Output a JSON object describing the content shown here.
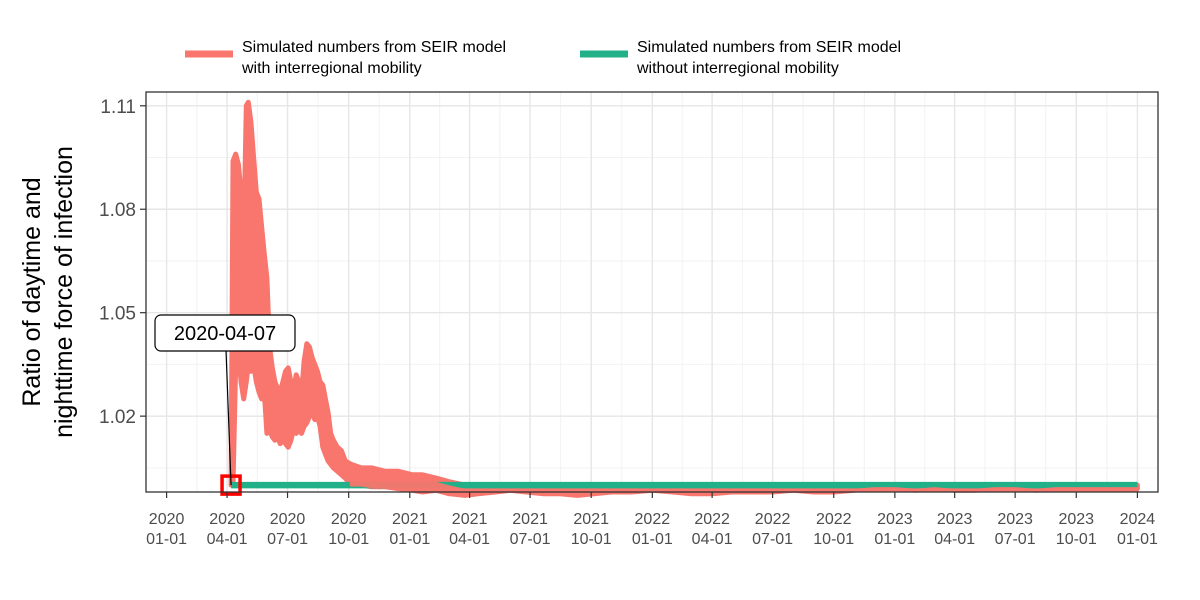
{
  "chart_data": {
    "type": "line",
    "xlabel": "",
    "ylabel": [
      "Ratio of daytime and",
      "nighttime force of infection"
    ],
    "ylim": [
      0.998,
      1.114
    ],
    "xlim": [
      "2019-12-01",
      "2024-02-01"
    ],
    "yticks": [
      "1.02",
      "1.05",
      "1.08",
      "1.11"
    ],
    "xticks": [
      {
        "date": "2020-01-01",
        "line1": "2020",
        "line2": "01-01"
      },
      {
        "date": "2020-04-01",
        "line1": "2020",
        "line2": "04-01"
      },
      {
        "date": "2020-07-01",
        "line1": "2020",
        "line2": "07-01"
      },
      {
        "date": "2020-10-01",
        "line1": "2020",
        "line2": "10-01"
      },
      {
        "date": "2021-01-01",
        "line1": "2021",
        "line2": "01-01"
      },
      {
        "date": "2021-04-01",
        "line1": "2021",
        "line2": "04-01"
      },
      {
        "date": "2021-07-01",
        "line1": "2021",
        "line2": "07-01"
      },
      {
        "date": "2021-10-01",
        "line1": "2021",
        "line2": "10-01"
      },
      {
        "date": "2022-01-01",
        "line1": "2022",
        "line2": "01-01"
      },
      {
        "date": "2022-04-01",
        "line1": "2022",
        "line2": "04-01"
      },
      {
        "date": "2022-07-01",
        "line1": "2022",
        "line2": "07-01"
      },
      {
        "date": "2022-10-01",
        "line1": "2022",
        "line2": "10-01"
      },
      {
        "date": "2023-01-01",
        "line1": "2023",
        "line2": "01-01"
      },
      {
        "date": "2023-04-01",
        "line1": "2023",
        "line2": "04-01"
      },
      {
        "date": "2023-07-01",
        "line1": "2023",
        "line2": "07-01"
      },
      {
        "date": "2023-10-01",
        "line1": "2023",
        "line2": "10-01"
      },
      {
        "date": "2024-01-01",
        "line1": "2024",
        "line2": "01-01"
      }
    ],
    "grid": true,
    "legend_position": "top",
    "series": [
      {
        "name": "Simulated numbers from SEIR model\nwith interregional mobility",
        "color": "#F8766D",
        "bands": [
          {
            "x": "2020-04-07",
            "low": 1.0,
            "high": 1.0
          },
          {
            "x": "2020-04-10",
            "low": 1.0,
            "high": 1.094
          },
          {
            "x": "2020-04-14",
            "low": 1.035,
            "high": 1.096
          },
          {
            "x": "2020-04-18",
            "low": 1.04,
            "high": 1.093
          },
          {
            "x": "2020-04-22",
            "low": 1.03,
            "high": 1.085
          },
          {
            "x": "2020-04-26",
            "low": 1.025,
            "high": 1.07
          },
          {
            "x": "2020-04-30",
            "low": 1.03,
            "high": 1.11
          },
          {
            "x": "2020-05-03",
            "low": 1.035,
            "high": 1.111
          },
          {
            "x": "2020-05-07",
            "low": 1.033,
            "high": 1.105
          },
          {
            "x": "2020-05-11",
            "low": 1.035,
            "high": 1.095
          },
          {
            "x": "2020-05-15",
            "low": 1.03,
            "high": 1.085
          },
          {
            "x": "2020-05-19",
            "low": 1.027,
            "high": 1.083
          },
          {
            "x": "2020-05-23",
            "low": 1.025,
            "high": 1.075
          },
          {
            "x": "2020-05-27",
            "low": 1.027,
            "high": 1.067
          },
          {
            "x": "2020-05-31",
            "low": 1.015,
            "high": 1.06
          },
          {
            "x": "2020-06-04",
            "low": 1.016,
            "high": 1.04
          },
          {
            "x": "2020-06-08",
            "low": 1.014,
            "high": 1.034
          },
          {
            "x": "2020-06-12",
            "low": 1.013,
            "high": 1.03
          },
          {
            "x": "2020-06-16",
            "low": 1.014,
            "high": 1.028
          },
          {
            "x": "2020-06-20",
            "low": 1.012,
            "high": 1.027
          },
          {
            "x": "2020-06-24",
            "low": 1.013,
            "high": 1.03
          },
          {
            "x": "2020-06-28",
            "low": 1.012,
            "high": 1.033
          },
          {
            "x": "2020-07-02",
            "low": 1.011,
            "high": 1.034
          },
          {
            "x": "2020-07-06",
            "low": 1.013,
            "high": 1.03
          },
          {
            "x": "2020-07-10",
            "low": 1.016,
            "high": 1.027
          },
          {
            "x": "2020-07-14",
            "low": 1.015,
            "high": 1.032
          },
          {
            "x": "2020-07-18",
            "low": 1.016,
            "high": 1.03
          },
          {
            "x": "2020-07-22",
            "low": 1.015,
            "high": 1.026
          },
          {
            "x": "2020-07-26",
            "low": 1.017,
            "high": 1.036
          },
          {
            "x": "2020-07-30",
            "low": 1.018,
            "high": 1.041
          },
          {
            "x": "2020-08-03",
            "low": 1.02,
            "high": 1.04
          },
          {
            "x": "2020-08-07",
            "low": 1.021,
            "high": 1.037
          },
          {
            "x": "2020-08-11",
            "low": 1.019,
            "high": 1.035
          },
          {
            "x": "2020-08-15",
            "low": 1.02,
            "high": 1.033
          },
          {
            "x": "2020-08-19",
            "low": 1.017,
            "high": 1.03
          },
          {
            "x": "2020-08-23",
            "low": 1.011,
            "high": 1.029
          },
          {
            "x": "2020-08-27",
            "low": 1.009,
            "high": 1.025
          },
          {
            "x": "2020-08-31",
            "low": 1.007,
            "high": 1.021
          },
          {
            "x": "2020-09-04",
            "low": 1.006,
            "high": 1.015
          },
          {
            "x": "2020-09-08",
            "low": 1.005,
            "high": 1.013
          },
          {
            "x": "2020-09-14",
            "low": 1.004,
            "high": 1.011
          },
          {
            "x": "2020-09-20",
            "low": 1.003,
            "high": 1.01
          },
          {
            "x": "2020-09-26",
            "low": 1.002,
            "high": 1.007
          },
          {
            "x": "2020-10-05",
            "low": 1.0,
            "high": 1.006
          },
          {
            "x": "2020-10-20",
            "low": 1.0,
            "high": 1.005
          },
          {
            "x": "2020-11-05",
            "low": 0.9995,
            "high": 1.005
          },
          {
            "x": "2020-11-25",
            "low": 0.9995,
            "high": 1.004
          },
          {
            "x": "2020-12-15",
            "low": 0.999,
            "high": 1.004
          },
          {
            "x": "2021-01-05",
            "low": 0.9985,
            "high": 1.003
          },
          {
            "x": "2021-01-20",
            "low": 0.998,
            "high": 1.003
          },
          {
            "x": "2021-02-10",
            "low": 0.9985,
            "high": 1.002
          },
          {
            "x": "2021-03-01",
            "low": 0.9975,
            "high": 1.001
          },
          {
            "x": "2021-03-25",
            "low": 0.997,
            "high": 1.0
          },
          {
            "x": "2021-04-15",
            "low": 0.9975,
            "high": 1.0
          },
          {
            "x": "2021-05-10",
            "low": 0.998,
            "high": 1.0
          },
          {
            "x": "2021-06-01",
            "low": 0.9985,
            "high": 1.0
          },
          {
            "x": "2021-06-25",
            "low": 0.998,
            "high": 1.0
          },
          {
            "x": "2021-07-20",
            "low": 0.9975,
            "high": 0.9995
          },
          {
            "x": "2021-08-15",
            "low": 0.9975,
            "high": 0.9995
          },
          {
            "x": "2021-09-10",
            "low": 0.997,
            "high": 0.9995
          },
          {
            "x": "2021-10-05",
            "low": 0.9975,
            "high": 0.9995
          },
          {
            "x": "2021-11-01",
            "low": 0.998,
            "high": 1.0
          },
          {
            "x": "2021-12-01",
            "low": 0.998,
            "high": 1.0
          },
          {
            "x": "2022-01-01",
            "low": 0.9985,
            "high": 1.0
          },
          {
            "x": "2022-02-01",
            "low": 0.998,
            "high": 1.0
          },
          {
            "x": "2022-03-01",
            "low": 0.9975,
            "high": 1.0
          },
          {
            "x": "2022-04-01",
            "low": 0.9975,
            "high": 0.9995
          },
          {
            "x": "2022-05-01",
            "low": 0.998,
            "high": 1.0
          },
          {
            "x": "2022-06-01",
            "low": 0.998,
            "high": 1.0
          },
          {
            "x": "2022-07-01",
            "low": 0.998,
            "high": 1.0
          },
          {
            "x": "2022-08-01",
            "low": 0.9985,
            "high": 1.0
          },
          {
            "x": "2022-09-01",
            "low": 0.998,
            "high": 1.0
          },
          {
            "x": "2022-10-01",
            "low": 0.998,
            "high": 1.0
          },
          {
            "x": "2022-11-01",
            "low": 0.9985,
            "high": 1.0
          },
          {
            "x": "2022-12-01",
            "low": 0.999,
            "high": 1.0
          },
          {
            "x": "2023-01-01",
            "low": 0.999,
            "high": 1.0
          },
          {
            "x": "2023-02-01",
            "low": 0.9985,
            "high": 1.0
          },
          {
            "x": "2023-03-01",
            "low": 0.999,
            "high": 1.0
          },
          {
            "x": "2023-04-01",
            "low": 0.9985,
            "high": 1.0
          },
          {
            "x": "2023-05-01",
            "low": 0.9985,
            "high": 1.0
          },
          {
            "x": "2023-06-01",
            "low": 0.999,
            "high": 1.0
          },
          {
            "x": "2023-07-01",
            "low": 0.999,
            "high": 1.0
          },
          {
            "x": "2023-08-01",
            "low": 0.9985,
            "high": 1.0
          },
          {
            "x": "2023-09-01",
            "low": 0.999,
            "high": 1.0
          },
          {
            "x": "2023-10-01",
            "low": 0.999,
            "high": 1.0
          },
          {
            "x": "2023-11-01",
            "low": 0.999,
            "high": 1.0
          },
          {
            "x": "2023-12-01",
            "low": 0.999,
            "high": 1.0
          },
          {
            "x": "2024-01-01",
            "low": 0.999,
            "high": 1.0
          }
        ]
      },
      {
        "name": "Simulated numbers from SEIR model\nwithout interregional mobility",
        "color": "#21B087",
        "points": [
          {
            "x": "2020-04-07",
            "y": 1.0
          },
          {
            "x": "2024-01-01",
            "y": 1.0
          }
        ]
      }
    ],
    "annotations": [
      {
        "text": "2020-04-07",
        "x": "2020-04-07",
        "y": 1.0,
        "highlight_color": "#FF0000"
      }
    ]
  }
}
